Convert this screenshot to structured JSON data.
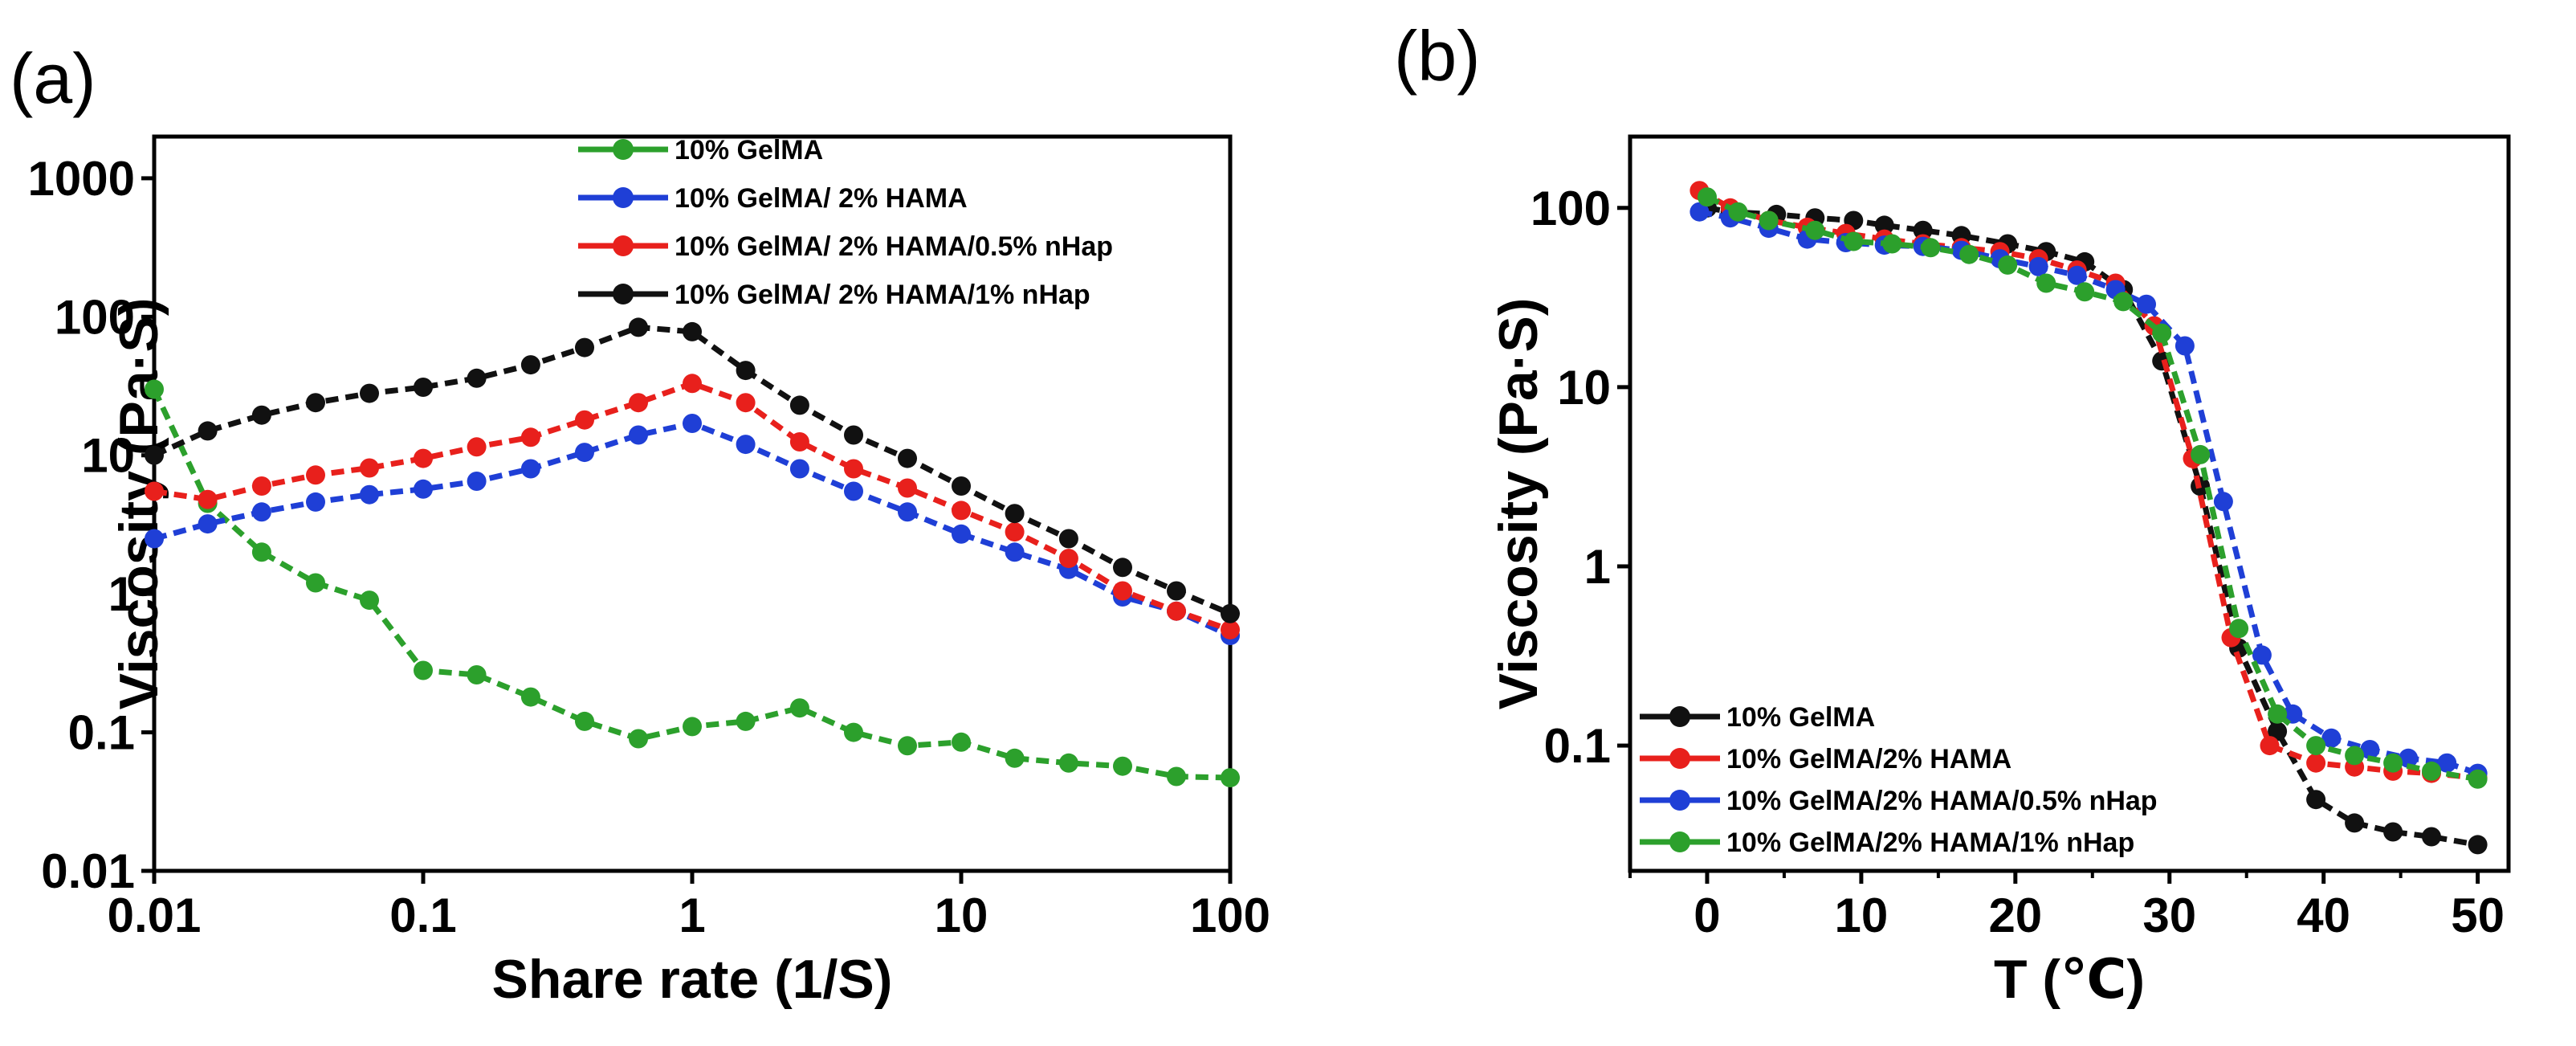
{
  "chart_data": [
    {
      "panel": "(a)",
      "type": "line",
      "xscale": "log",
      "yscale": "log",
      "xlabel": "Share rate (1/S)",
      "ylabel": "Viscosity (Pa·S)",
      "xlim": [
        0.01,
        100
      ],
      "ylim": [
        0.01,
        2000
      ],
      "xticks": [
        0.01,
        0.1,
        1,
        10,
        100
      ],
      "xtick_labels": [
        "0.01",
        "0.1",
        "1",
        "10",
        "100"
      ],
      "yticks": [
        0.01,
        0.1,
        1,
        10,
        100,
        1000
      ],
      "ytick_labels": [
        "0.01",
        "0.1",
        "1",
        "10",
        "100",
        "1000"
      ],
      "legend_position": "top-right",
      "x": [
        0.01,
        0.0158,
        0.0251,
        0.0398,
        0.0631,
        0.1,
        0.158,
        0.251,
        0.398,
        0.631,
        1,
        1.58,
        2.51,
        3.98,
        6.31,
        10,
        15.8,
        25.1,
        39.8,
        63.1,
        100
      ],
      "series": [
        {
          "name": "10% GelMA",
          "color": "#2ca02c",
          "values": [
            30,
            4.5,
            2.0,
            1.2,
            0.9,
            0.28,
            0.26,
            0.18,
            0.12,
            0.09,
            0.11,
            0.12,
            0.15,
            0.1,
            0.08,
            0.085,
            0.065,
            0.06,
            0.057,
            0.048,
            0.047
          ]
        },
        {
          "name": "10% GelMA/ 2% HAMA",
          "color": "#1f3fd6",
          "values": [
            2.5,
            3.2,
            3.9,
            4.6,
            5.2,
            5.7,
            6.5,
            8.0,
            10.5,
            14,
            17,
            12,
            8,
            5.5,
            3.9,
            2.7,
            2.0,
            1.5,
            0.95,
            0.75,
            0.5
          ]
        },
        {
          "name": "10% GelMA/ 2% HAMA/0.5% nHap",
          "color": "#e8201c",
          "values": [
            5.5,
            4.8,
            6.0,
            7.2,
            8.1,
            9.5,
            11.5,
            13.5,
            18,
            24,
            33,
            24,
            12.5,
            8.0,
            5.8,
            4.0,
            2.8,
            1.8,
            1.05,
            0.75,
            0.55
          ]
        },
        {
          "name": "10% GelMA/ 2% HAMA/1% nHap",
          "color": "#111111",
          "values": [
            10,
            15,
            19.5,
            24,
            28,
            31,
            36,
            45,
            60,
            84,
            78,
            41,
            23,
            14,
            9.5,
            6.0,
            3.8,
            2.5,
            1.55,
            1.05,
            0.72
          ]
        }
      ]
    },
    {
      "panel": "(b)",
      "type": "line",
      "xscale": "linear",
      "yscale": "log",
      "xlabel": "T (℃)",
      "ylabel": "Viscosity (Pa·S)",
      "xlim": [
        -5,
        52
      ],
      "ylim": [
        0.02,
        250
      ],
      "xticks": [
        0,
        10,
        20,
        30,
        40,
        50
      ],
      "xtick_labels": [
        "0",
        "10",
        "20",
        "30",
        "40",
        "50"
      ],
      "yticks": [
        0.1,
        1,
        10,
        100
      ],
      "ytick_labels": [
        "0.1",
        "1",
        "10",
        "100"
      ],
      "legend_position": "bottom-left",
      "series": [
        {
          "name": "10% GelMA",
          "color": "#111111",
          "x": [
            0,
            1.5,
            4.5,
            7,
            9.5,
            11.5,
            14,
            16.5,
            19.5,
            22,
            24.5,
            27,
            29.5,
            32,
            34.5,
            37,
            39.5,
            42,
            44.5,
            47,
            50
          ],
          "values": [
            100,
            95,
            92,
            88,
            85,
            80,
            75,
            70,
            63,
            57,
            50,
            35,
            14,
            2.8,
            0.35,
            0.12,
            0.05,
            0.037,
            0.033,
            0.031,
            0.028
          ]
        },
        {
          "name": "10% GelMA/2% HAMA",
          "color": "#e8201c",
          "x": [
            -0.5,
            1.5,
            4,
            6.5,
            9,
            11.5,
            14,
            16.5,
            19,
            21.5,
            24,
            26.5,
            29,
            31.5,
            34,
            36.5,
            39.5,
            42,
            44.5,
            47,
            50
          ],
          "values": [
            125,
            100,
            85,
            78,
            72,
            67,
            63,
            60,
            57,
            52,
            45,
            38,
            22,
            4.0,
            0.4,
            0.1,
            0.08,
            0.076,
            0.072,
            0.07,
            0.066
          ]
        },
        {
          "name": "10% GelMA/2% HAMA/0.5% nHap",
          "color": "#1f3fd6",
          "x": [
            -0.5,
            1.5,
            4,
            6.5,
            9,
            11.5,
            14,
            16.5,
            19,
            21.5,
            24,
            26.5,
            28.5,
            31,
            33.5,
            36,
            38,
            40.5,
            43,
            45.5,
            48,
            50
          ],
          "values": [
            95,
            88,
            77,
            67,
            64,
            62,
            61,
            58,
            52,
            47,
            42,
            35,
            29,
            17,
            2.3,
            0.32,
            0.15,
            0.11,
            0.095,
            0.085,
            0.08,
            0.07
          ]
        },
        {
          "name": "10% GelMA/2% HAMA/1% nHap",
          "color": "#2ca02c",
          "x": [
            0,
            2,
            4,
            7,
            9.5,
            12,
            14.5,
            17,
            19.5,
            22,
            24.5,
            27,
            29.5,
            32,
            34.5,
            37,
            39.5,
            42,
            44.5,
            47,
            50
          ],
          "values": [
            115,
            95,
            85,
            75,
            65,
            63,
            60,
            55,
            48,
            38,
            34,
            30,
            20,
            4.2,
            0.45,
            0.15,
            0.1,
            0.088,
            0.08,
            0.072,
            0.065
          ]
        }
      ]
    }
  ]
}
